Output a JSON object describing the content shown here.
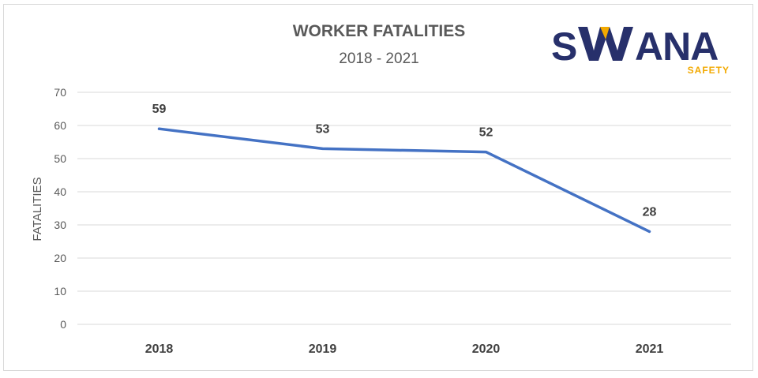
{
  "chart_data": {
    "type": "line",
    "title": "WORKER FATALITIES",
    "subtitle": "2018 - 2021",
    "ylabel": "FATALITIES",
    "xlabel": "",
    "categories": [
      "2018",
      "2019",
      "2020",
      "2021"
    ],
    "series": [
      {
        "values": [
          59,
          53,
          52,
          28
        ],
        "color": "#4472c4"
      }
    ],
    "data_labels": [
      "59",
      "53",
      "52",
      "28"
    ],
    "ylim": [
      0,
      70
    ],
    "yticks": [
      0,
      10,
      20,
      30,
      40,
      50,
      60,
      70
    ],
    "grid": true,
    "legend": "none"
  },
  "logo": {
    "name": "SWANA",
    "tagline": "SAFETY",
    "colors": {
      "navy": "#27306b",
      "gold": "#f2a900"
    }
  }
}
